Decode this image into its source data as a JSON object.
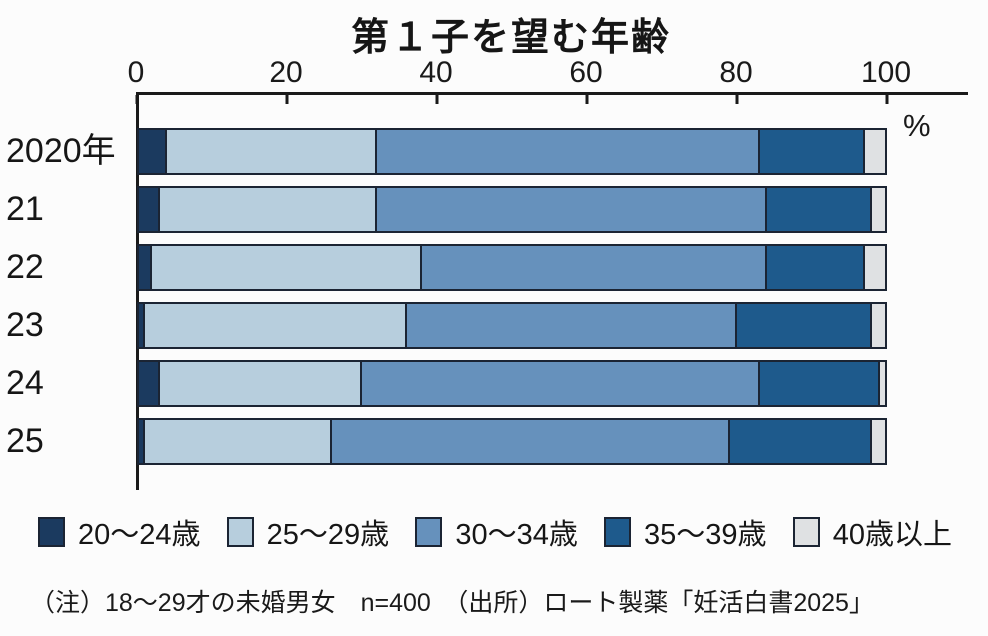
{
  "title": "第１子を望む年齢",
  "axis": {
    "tick_labels": [
      "0",
      "20",
      "40",
      "60",
      "80",
      "100"
    ],
    "unit_label": "%"
  },
  "chart_data": {
    "type": "bar",
    "variant": "horizontal_stacked_100percent",
    "title": "第１子を望む年齢",
    "categories": [
      "2020年",
      "21",
      "22",
      "23",
      "24",
      "25"
    ],
    "series": [
      {
        "name": "20〜24歳",
        "color": "#1b3a5f",
        "values": [
          4,
          3,
          2,
          1,
          3,
          1
        ]
      },
      {
        "name": "25〜29歳",
        "color": "#b7cedd",
        "values": [
          28,
          29,
          36,
          35,
          27,
          25
        ]
      },
      {
        "name": "30〜34歳",
        "color": "#6691bc",
        "values": [
          51,
          52,
          46,
          44,
          53,
          53
        ]
      },
      {
        "name": "35〜39歳",
        "color": "#1e5a8c",
        "values": [
          14,
          14,
          13,
          18,
          16,
          19
        ]
      },
      {
        "name": "40歳以上",
        "color": "#dfe1e3",
        "values": [
          3,
          2,
          3,
          2,
          1,
          2
        ]
      }
    ],
    "xlim": [
      0,
      100
    ],
    "x_ticks": [
      0,
      20,
      40,
      60,
      80,
      100
    ],
    "unit": "%",
    "grid": false,
    "legend_position": "bottom"
  },
  "legend": {
    "items": [
      {
        "label": "20〜24歳",
        "color": "#1b3a5f"
      },
      {
        "label": "25〜29歳",
        "color": "#b7cedd"
      },
      {
        "label": "30〜34歳",
        "color": "#6691bc"
      },
      {
        "label": "35〜39歳",
        "color": "#1e5a8c"
      },
      {
        "label": "40歳以上",
        "color": "#dfe1e3"
      }
    ]
  },
  "note": "（注）18〜29才の未婚男女　n=400　（出所）ロート製薬「妊活白書2025」"
}
